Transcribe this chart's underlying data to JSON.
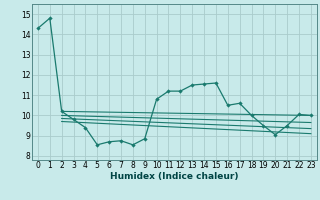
{
  "xlabel": "Humidex (Indice chaleur)",
  "bg_color": "#c8eaea",
  "grid_color": "#aacccc",
  "line_color": "#1a7a6e",
  "xlim": [
    -0.5,
    23.5
  ],
  "ylim": [
    7.8,
    15.5
  ],
  "yticks": [
    8,
    9,
    10,
    11,
    12,
    13,
    14,
    15
  ],
  "xticks": [
    0,
    1,
    2,
    3,
    4,
    5,
    6,
    7,
    8,
    9,
    10,
    11,
    12,
    13,
    14,
    15,
    16,
    17,
    18,
    19,
    20,
    21,
    22,
    23
  ],
  "x_main": [
    0,
    1,
    2,
    3,
    4,
    5,
    6,
    7,
    8,
    9,
    10,
    11,
    12,
    13,
    14,
    15,
    16,
    17,
    18,
    19,
    20,
    21,
    22,
    23
  ],
  "y_main": [
    14.3,
    14.8,
    10.2,
    9.8,
    9.4,
    8.55,
    8.7,
    8.75,
    8.55,
    8.85,
    10.8,
    11.2,
    11.2,
    11.5,
    11.55,
    11.6,
    10.5,
    10.6,
    10.0,
    9.5,
    9.05,
    9.5,
    10.05,
    10.0
  ],
  "reg_lines": [
    {
      "x": [
        2,
        23
      ],
      "y": [
        10.2,
        10.0
      ]
    },
    {
      "x": [
        2,
        23
      ],
      "y": [
        10.0,
        9.65
      ]
    },
    {
      "x": [
        2,
        23
      ],
      "y": [
        9.85,
        9.35
      ]
    },
    {
      "x": [
        2,
        23
      ],
      "y": [
        9.7,
        9.1
      ]
    }
  ]
}
